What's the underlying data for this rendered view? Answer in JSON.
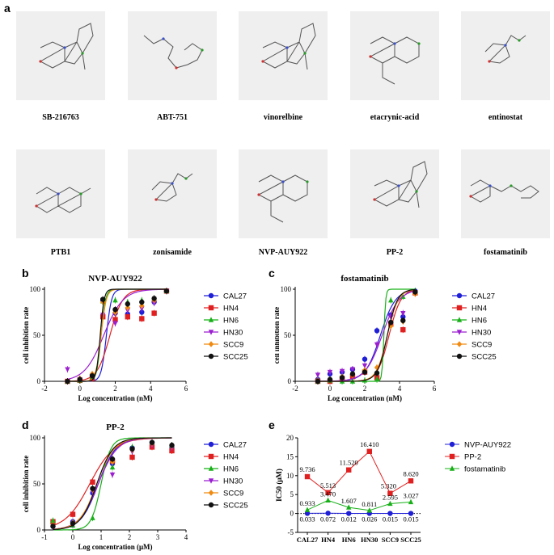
{
  "panel_a": {
    "letter": "a",
    "compounds": [
      "SB-216763",
      "ABT-751",
      "vinorelbine",
      "etacrynic-acid",
      "entinostat",
      "PTB1",
      "zonisamide",
      "NVP-AUY922",
      "PP-2",
      "fostamatinib"
    ]
  },
  "panels": {
    "b": "b",
    "c": "c",
    "d": "d",
    "e": "e"
  },
  "colors": {
    "CAL27": "#1f1fd8",
    "HN4": "#e02020",
    "HN6": "#18b018",
    "HN30": "#9b1fd0",
    "SCC9": "#f08a10",
    "SCC25": "#111111"
  },
  "chart_data": [
    {
      "panel": "b",
      "type": "scatter",
      "title": "NVP-AUY922",
      "xlabel": "Log concentration (nM)",
      "ylabel": "cell inhibition rate",
      "xlim": [
        -2,
        6
      ],
      "ylim": [
        0,
        100
      ],
      "xticks": [
        "-2",
        "0",
        "2",
        "4",
        "6"
      ],
      "yticks": [
        "0",
        "50",
        "100"
      ],
      "x": [
        -0.7,
        0.0,
        0.7,
        1.3,
        2.0,
        2.7,
        3.5,
        4.2,
        4.9
      ],
      "series": [
        {
          "name": "CAL27",
          "values": [
            0,
            2,
            7,
            88,
            74,
            73,
            75,
            86,
            98
          ],
          "ic50": 1.5,
          "hill": 3.0
        },
        {
          "name": "HN4",
          "values": [
            0,
            1,
            3,
            70,
            67,
            70,
            68,
            74,
            98
          ],
          "ic50": 1.7,
          "hill": 1.2
        },
        {
          "name": "HN6",
          "values": [
            0,
            1,
            5,
            87,
            88,
            86,
            88,
            90,
            98
          ],
          "ic50": 1.2,
          "hill": 3.5
        },
        {
          "name": "HN30",
          "values": [
            13,
            2,
            5,
            72,
            63,
            77,
            79,
            85,
            98
          ],
          "ic50": 1.35,
          "hill": 0.8
        },
        {
          "name": "SCC9",
          "values": [
            0,
            3,
            8,
            86,
            75,
            80,
            82,
            88,
            98
          ],
          "ic50": 1.2,
          "hill": 3.0
        },
        {
          "name": "SCC25",
          "values": [
            0,
            2,
            6,
            89,
            78,
            84,
            86,
            90,
            98
          ],
          "ic50": 1.15,
          "hill": 4.0
        }
      ]
    },
    {
      "panel": "c",
      "type": "scatter",
      "title": "fostamatinib",
      "xlabel": "Log concentration (nM)",
      "ylabel": "cell inhibition rate",
      "xlim": [
        -2,
        6
      ],
      "ylim": [
        0,
        100
      ],
      "xticks": [
        "-2",
        "0",
        "2",
        "4",
        "6"
      ],
      "yticks": [
        "0",
        "50",
        "100"
      ],
      "x": [
        -0.7,
        0.0,
        0.7,
        1.3,
        2.0,
        2.7,
        3.5,
        4.2,
        4.9
      ],
      "series": [
        {
          "name": "CAL27",
          "values": [
            2,
            8,
            10,
            13,
            24,
            55,
            72,
            70,
            98
          ],
          "ic50": 2.9,
          "hill": 1.0
        },
        {
          "name": "HN4",
          "values": [
            0,
            0,
            3,
            5,
            10,
            4,
            62,
            56,
            96
          ],
          "ic50": 3.4,
          "hill": 1.3
        },
        {
          "name": "HN6",
          "values": [
            0,
            1,
            0,
            0,
            1,
            2,
            88,
            92,
            98
          ],
          "ic50": 3.1,
          "hill": 8.0
        },
        {
          "name": "HN30",
          "values": [
            7,
            10,
            11,
            13,
            17,
            40,
            70,
            74,
            96
          ],
          "ic50": 3.0,
          "hill": 0.9
        },
        {
          "name": "SCC9",
          "values": [
            1,
            2,
            5,
            7,
            12,
            15,
            60,
            65,
            95
          ],
          "ic50": 3.3,
          "hill": 1.4
        },
        {
          "name": "SCC25",
          "values": [
            0,
            2,
            4,
            8,
            10,
            9,
            64,
            66,
            97
          ],
          "ic50": 3.3,
          "hill": 1.5
        }
      ]
    },
    {
      "panel": "d",
      "type": "scatter",
      "title": "PP-2",
      "xlabel": "Log concentration (μM)",
      "ylabel": "cell inhibition rate",
      "xlim": [
        -1,
        4
      ],
      "ylim": [
        0,
        100
      ],
      "xticks": [
        "-1",
        "0",
        "1",
        "2",
        "3",
        "4"
      ],
      "yticks": [
        "0",
        "50",
        "100"
      ],
      "x": [
        -0.7,
        0.0,
        0.7,
        1.4,
        2.1,
        2.8,
        3.5
      ],
      "series": [
        {
          "name": "CAL27",
          "values": [
            4,
            9,
            40,
            72,
            89,
            95,
            90
          ],
          "ic50": 0.9,
          "hill": 1.4
        },
        {
          "name": "HN4",
          "values": [
            9,
            17,
            52,
            75,
            79,
            90,
            86
          ],
          "ic50": 0.6,
          "hill": 1.0
        },
        {
          "name": "HN6",
          "values": [
            10,
            5,
            13,
            68,
            90,
            95,
            92
          ],
          "ic50": 1.0,
          "hill": 2.5
        },
        {
          "name": "HN30",
          "values": [
            3,
            6,
            42,
            60,
            85,
            92,
            89
          ],
          "ic50": 0.9,
          "hill": 1.3
        },
        {
          "name": "SCC9",
          "values": [
            5,
            8,
            44,
            74,
            87,
            94,
            91
          ],
          "ic50": 0.85,
          "hill": 1.4
        },
        {
          "name": "SCC25",
          "values": [
            4,
            7,
            45,
            77,
            88,
            95,
            92
          ],
          "ic50": 0.85,
          "hill": 1.5
        }
      ]
    },
    {
      "panel": "e",
      "type": "line",
      "xlabel": "",
      "ylabel": "IC50 (μM)",
      "ylim": [
        -5,
        20
      ],
      "yticks": [
        "-5",
        "0",
        "5",
        "10",
        "15",
        "20"
      ],
      "categories": [
        "CAL27",
        "HN4",
        "HN6",
        "HN30",
        "SCC9",
        "SCC25"
      ],
      "series": [
        {
          "name": "NVP-AUY922",
          "color": "#1f1fd8",
          "values": [
            0.033,
            0.072,
            0.012,
            0.026,
            0.015,
            0.015
          ],
          "labels": [
            "0.033",
            "0.072",
            "0.012",
            "0.026",
            "0.015",
            "0.015"
          ]
        },
        {
          "name": "PP-2",
          "color": "#e02020",
          "values": [
            9.736,
            5.513,
            11.52,
            16.41,
            5.32,
            8.62
          ],
          "labels": [
            "9.736",
            "5.513",
            "11.520",
            "16.410",
            "5.320",
            "8.620"
          ]
        },
        {
          "name": "fostamatinib",
          "color": "#18b018",
          "values": [
            0.933,
            3.47,
            1.607,
            0.811,
            2.595,
            3.027
          ],
          "labels": [
            "0.933",
            "3.470",
            "1.607",
            "0.811",
            "2.595",
            "3.027"
          ]
        }
      ]
    }
  ]
}
